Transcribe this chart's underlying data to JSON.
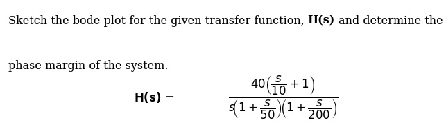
{
  "background_color": "#ffffff",
  "line1_plain": "Sketch the bode plot for the given transfer function, ",
  "line1_bold": "H(s)",
  "line1_end": " and determine the gain margin and",
  "line2": "phase margin of the system.",
  "formula": "$\\dfrac{40\\,\\left(\\dfrac{s}{10}+1\\right)}{s\\left(1+\\dfrac{s}{50}\\right)\\!\\left(1+\\dfrac{s}{200}\\right)}$",
  "formula_label": "H(s) =",
  "body_fontsize": 11.5,
  "formula_fontsize": 12,
  "fig_width": 6.43,
  "fig_height": 1.81,
  "dpi": 100
}
